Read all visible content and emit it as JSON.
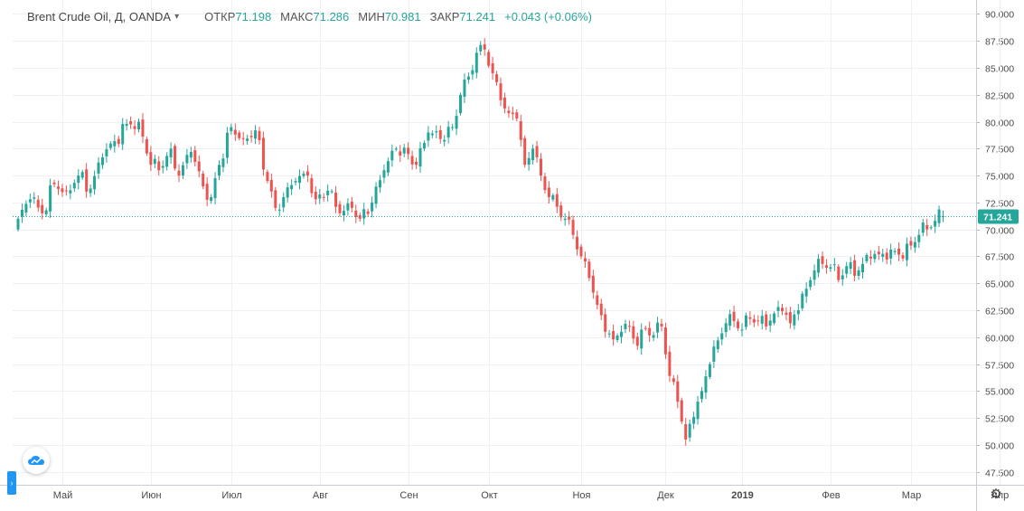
{
  "legend": {
    "symbol": "Brent Crude Oil, Д, OANDA",
    "open_label": "ОТКР",
    "open": "71.198",
    "high_label": "МАКС",
    "high": "71.286",
    "low_label": "МИН",
    "low": "70.981",
    "close_label": "ЗАКР",
    "close": "71.241",
    "change": "+0.043 (+0.06%)"
  },
  "price_tag": "71.241",
  "colors": {
    "up": "#26a69a",
    "down": "#ef5350",
    "grid": "#eef0f3",
    "price_line": "#26a69a",
    "price_tag": "#26a69a"
  },
  "icons": {
    "logo": "tradingview-cloud-icon",
    "settings": "gear-icon",
    "side_tab": "chevron-icon"
  },
  "chart_data": {
    "type": "candlestick",
    "title": "Brent Crude Oil, Д, OANDA",
    "y_ticks": [
      "90.000",
      "87.500",
      "85.000",
      "82.500",
      "80.000",
      "77.500",
      "75.000",
      "72.500",
      "70.000",
      "67.500",
      "65.000",
      "62.500",
      "60.000",
      "57.500",
      "55.000",
      "52.500",
      "50.000",
      "47.500"
    ],
    "ylim": [
      46.3,
      91.3
    ],
    "x_ticks": [
      {
        "label": "Май",
        "bold": false
      },
      {
        "label": "Июн",
        "bold": false
      },
      {
        "label": "Июл",
        "bold": false
      },
      {
        "label": "Авг",
        "bold": false
      },
      {
        "label": "Сен",
        "bold": false
      },
      {
        "label": "Окт",
        "bold": false
      },
      {
        "label": "Ноя",
        "bold": false
      },
      {
        "label": "Дек",
        "bold": false
      },
      {
        "label": "2019",
        "bold": true
      },
      {
        "label": "Фев",
        "bold": false
      },
      {
        "label": "Мар",
        "bold": false
      },
      {
        "label": "Апр",
        "bold": false
      }
    ],
    "x_tick_day_index": [
      11,
      33,
      53,
      75,
      97,
      117,
      140,
      161,
      180,
      202,
      222,
      244
    ],
    "current_price": 71.241,
    "grid": true,
    "anchors": [
      [
        0,
        71.0
      ],
      [
        3,
        72.8
      ],
      [
        6,
        71.5
      ],
      [
        9,
        74.2
      ],
      [
        12,
        73.6
      ],
      [
        15,
        75.0
      ],
      [
        18,
        73.8
      ],
      [
        21,
        76.7
      ],
      [
        24,
        78.2
      ],
      [
        27,
        79.8
      ],
      [
        30,
        80.0
      ],
      [
        33,
        76.0
      ],
      [
        35,
        75.5
      ],
      [
        38,
        77.5
      ],
      [
        40,
        75.0
      ],
      [
        43,
        77.2
      ],
      [
        46,
        74.0
      ],
      [
        48,
        73.0
      ],
      [
        50,
        76.0
      ],
      [
        53,
        79.5
      ],
      [
        56,
        78.4
      ],
      [
        59,
        79.2
      ],
      [
        62,
        74.5
      ],
      [
        64,
        72.0
      ],
      [
        66,
        73.0
      ],
      [
        69,
        74.5
      ],
      [
        72,
        75.0
      ],
      [
        74,
        72.8
      ],
      [
        77,
        73.6
      ],
      [
        80,
        71.5
      ],
      [
        83,
        72.0
      ],
      [
        85,
        71.0
      ],
      [
        88,
        72.5
      ],
      [
        91,
        75.5
      ],
      [
        94,
        77.5
      ],
      [
        97,
        77.0
      ],
      [
        99,
        76.0
      ],
      [
        102,
        79.0
      ],
      [
        105,
        78.4
      ],
      [
        108,
        79.5
      ],
      [
        110,
        82.5
      ],
      [
        112,
        84.2
      ],
      [
        114,
        86.4
      ],
      [
        116,
        86.7
      ],
      [
        118,
        84.5
      ],
      [
        120,
        82.0
      ],
      [
        122,
        80.8
      ],
      [
        124,
        80.3
      ],
      [
        126,
        76.0
      ],
      [
        128,
        77.5
      ],
      [
        130,
        75.0
      ],
      [
        132,
        73.0
      ],
      [
        134,
        72.1
      ],
      [
        136,
        71.0
      ],
      [
        138,
        69.5
      ],
      [
        140,
        67.5
      ],
      [
        142,
        65.5
      ],
      [
        144,
        63.0
      ],
      [
        146,
        60.5
      ],
      [
        148,
        59.8
      ],
      [
        150,
        60.5
      ],
      [
        152,
        61.0
      ],
      [
        154,
        59.2
      ],
      [
        156,
        60.8
      ],
      [
        158,
        60.2
      ],
      [
        160,
        61.0
      ],
      [
        162,
        56.4
      ],
      [
        164,
        54.0
      ],
      [
        166,
        50.5
      ],
      [
        168,
        52.6
      ],
      [
        170,
        55.0
      ],
      [
        172,
        57.5
      ],
      [
        174,
        59.7
      ],
      [
        176,
        61.3
      ],
      [
        178,
        61.5
      ],
      [
        180,
        60.7
      ],
      [
        182,
        61.7
      ],
      [
        184,
        61.5
      ],
      [
        186,
        61.0
      ],
      [
        188,
        62.2
      ],
      [
        190,
        62.4
      ],
      [
        192,
        61.3
      ],
      [
        194,
        62.5
      ],
      [
        196,
        64.5
      ],
      [
        198,
        66.2
      ],
      [
        200,
        66.8
      ],
      [
        202,
        66.5
      ],
      [
        204,
        65.3
      ],
      [
        206,
        66.6
      ],
      [
        208,
        65.7
      ],
      [
        210,
        66.8
      ],
      [
        212,
        67.3
      ],
      [
        214,
        67.7
      ],
      [
        216,
        67.2
      ],
      [
        218,
        68.0
      ],
      [
        220,
        67.3
      ],
      [
        222,
        68.5
      ],
      [
        224,
        69.5
      ],
      [
        226,
        70.0
      ],
      [
        228,
        70.8
      ],
      [
        230,
        71.241
      ]
    ]
  }
}
